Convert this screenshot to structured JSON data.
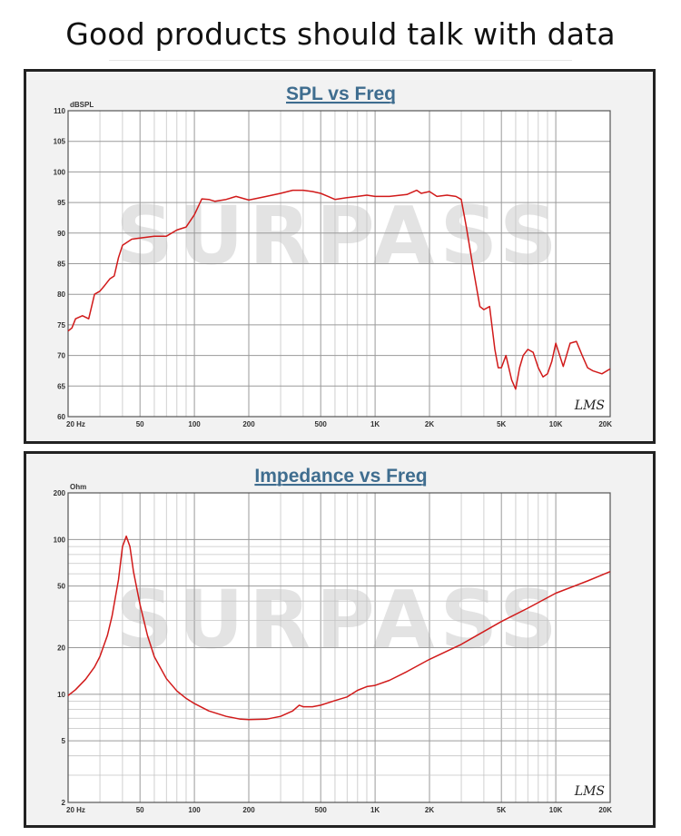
{
  "page": {
    "headline": "Good products should talk with data"
  },
  "chart_data": [
    {
      "type": "line",
      "title": "SPL vs Freq",
      "ylabel": "dBSPL",
      "xscale": "log",
      "xlim": [
        20,
        20000
      ],
      "ylim": [
        60,
        110
      ],
      "x_ticks": [
        {
          "v": 20,
          "label": "20 Hz"
        },
        {
          "v": 50,
          "label": "50"
        },
        {
          "v": 100,
          "label": "100"
        },
        {
          "v": 200,
          "label": "200"
        },
        {
          "v": 500,
          "label": "500"
        },
        {
          "v": 1000,
          "label": "1K"
        },
        {
          "v": 2000,
          "label": "2K"
        },
        {
          "v": 5000,
          "label": "5K"
        },
        {
          "v": 10000,
          "label": "10K"
        },
        {
          "v": 20000,
          "label": "20K"
        }
      ],
      "y_ticks": [
        {
          "v": 60,
          "label": "60"
        },
        {
          "v": 65,
          "label": "65"
        },
        {
          "v": 70,
          "label": "70"
        },
        {
          "v": 75,
          "label": "75"
        },
        {
          "v": 80,
          "label": "80"
        },
        {
          "v": 85,
          "label": "85"
        },
        {
          "v": 90,
          "label": "90"
        },
        {
          "v": 95,
          "label": "95"
        },
        {
          "v": 100,
          "label": "100"
        },
        {
          "v": 105,
          "label": "105"
        },
        {
          "v": 110,
          "label": "110"
        }
      ],
      "grid": true,
      "watermark": "SURPASS",
      "signature": "LMS",
      "color": "#d11a1a",
      "series": [
        {
          "x": [
            20,
            21,
            22,
            24,
            26,
            28,
            30,
            32,
            34,
            36,
            38,
            40,
            45,
            50,
            60,
            70,
            80,
            90,
            100,
            110,
            120,
            130,
            150,
            170,
            200,
            250,
            300,
            350,
            400,
            450,
            500,
            550,
            600,
            700,
            800,
            900,
            1000,
            1200,
            1500,
            1700,
            1800,
            2000,
            2200,
            2500,
            2800,
            3000,
            3200,
            3500,
            3800,
            4000,
            4300,
            4600,
            4800,
            5000,
            5300,
            5700,
            6000,
            6300,
            6600,
            7000,
            7500,
            8000,
            8500,
            9000,
            9500,
            10000,
            11000,
            12000,
            13000,
            14000,
            15000,
            16000,
            18000,
            20000
          ],
          "y": [
            74,
            74.5,
            76,
            76.5,
            76,
            80,
            80.5,
            81.5,
            82.5,
            83,
            86,
            88,
            89,
            89.2,
            89.5,
            89.5,
            90.5,
            91,
            93,
            95.6,
            95.5,
            95.2,
            95.5,
            96,
            95.4,
            96,
            96.5,
            97,
            97,
            96.8,
            96.5,
            96,
            95.5,
            95.8,
            96,
            96.2,
            96,
            96,
            96.3,
            97,
            96.5,
            96.8,
            96,
            96.2,
            96,
            95.5,
            91,
            84,
            78,
            77.5,
            78,
            71,
            68,
            68,
            70,
            66,
            64.5,
            68,
            70,
            71,
            70.5,
            68,
            66.5,
            67,
            69,
            72,
            68.2,
            72,
            72.3,
            70,
            68,
            67.5,
            67,
            67.8
          ]
        }
      ]
    },
    {
      "type": "line",
      "title": "Impedance vs Freq",
      "ylabel": "Ohm",
      "xscale": "log",
      "yscale": "log",
      "xlim": [
        20,
        20000
      ],
      "ylim": [
        2,
        200
      ],
      "x_ticks": [
        {
          "v": 20,
          "label": "20 Hz"
        },
        {
          "v": 50,
          "label": "50"
        },
        {
          "v": 100,
          "label": "100"
        },
        {
          "v": 200,
          "label": "200"
        },
        {
          "v": 500,
          "label": "500"
        },
        {
          "v": 1000,
          "label": "1K"
        },
        {
          "v": 2000,
          "label": "2K"
        },
        {
          "v": 5000,
          "label": "5K"
        },
        {
          "v": 10000,
          "label": "10K"
        },
        {
          "v": 20000,
          "label": "20K"
        }
      ],
      "y_ticks": [
        {
          "v": 2,
          "label": "2"
        },
        {
          "v": 5,
          "label": "5"
        },
        {
          "v": 10,
          "label": "10"
        },
        {
          "v": 20,
          "label": "20"
        },
        {
          "v": 50,
          "label": "50"
        },
        {
          "v": 100,
          "label": "100"
        },
        {
          "v": 200,
          "label": "200"
        }
      ],
      "grid": true,
      "watermark": "SURPASS",
      "signature": "LMS",
      "color": "#d11a1a",
      "series": [
        {
          "x": [
            20,
            22,
            25,
            28,
            30,
            33,
            35,
            38,
            40,
            42,
            44,
            46,
            50,
            55,
            60,
            70,
            80,
            90,
            100,
            120,
            150,
            180,
            200,
            250,
            300,
            350,
            380,
            400,
            450,
            500,
            600,
            700,
            800,
            900,
            1000,
            1200,
            1500,
            2000,
            3000,
            5000,
            7000,
            10000,
            15000,
            20000
          ],
          "y": [
            9.8,
            10.7,
            12.5,
            15,
            17.5,
            24,
            32,
            55,
            90,
            105,
            90,
            62,
            38,
            24,
            17.5,
            12.6,
            10.5,
            9.4,
            8.7,
            7.8,
            7.2,
            6.9,
            6.85,
            6.9,
            7.2,
            7.8,
            8.5,
            8.3,
            8.3,
            8.5,
            9.1,
            9.6,
            10.6,
            11.2,
            11.4,
            12.3,
            14,
            16.8,
            21,
            29.5,
            36,
            45,
            54,
            62
          ]
        }
      ]
    }
  ]
}
